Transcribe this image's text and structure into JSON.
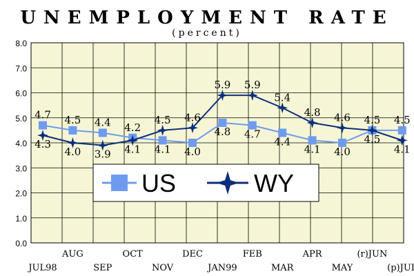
{
  "chart_data": {
    "type": "line",
    "title": "UNEMPLOYMENT RATE",
    "subtitle": "(percent)",
    "categories": [
      "JUL98",
      "AUG",
      "SEP",
      "OCT",
      "NOV",
      "DEC",
      "JAN99",
      "FEB",
      "MAR",
      "APR",
      "MAY",
      "(r)JUN",
      "(p)JUL"
    ],
    "series": [
      {
        "name": "US",
        "values": [
          4.7,
          4.5,
          4.4,
          4.2,
          4.1,
          4.0,
          4.8,
          4.7,
          4.4,
          4.1,
          4.0,
          4.5,
          4.5
        ],
        "color": "#6f9bef",
        "marker": "square"
      },
      {
        "name": "WY",
        "values": [
          4.3,
          4.0,
          3.9,
          4.1,
          4.5,
          4.6,
          5.9,
          5.9,
          5.4,
          4.8,
          4.6,
          4.5,
          4.1
        ],
        "color": "#0b2f7a",
        "marker": "star"
      }
    ],
    "data_labels": {
      "US": [
        "4.7",
        "4.5",
        "4.4",
        "4.2",
        "4.1",
        "4.0",
        "4.8",
        "4.7",
        "4.4",
        "4.1",
        "4.0",
        "4.5",
        "4.5"
      ],
      "WY": [
        "4.3",
        "4.0",
        "3.9",
        "4.1",
        "4.5",
        "4.6",
        "5.9",
        "5.9",
        "5.4",
        "4.8",
        "4.6",
        "4.5",
        "4.1"
      ]
    },
    "y_ticks": [
      "0.0",
      "1.0",
      "2.0",
      "3.0",
      "4.0",
      "5.0",
      "6.0",
      "7.0",
      "8.0"
    ],
    "ylim": [
      0,
      8
    ],
    "grid": true,
    "legend_placement": "lower-center",
    "legend": [
      "US",
      "WY"
    ],
    "plot_background": "#f6f6d6",
    "grid_color": "#000000"
  }
}
